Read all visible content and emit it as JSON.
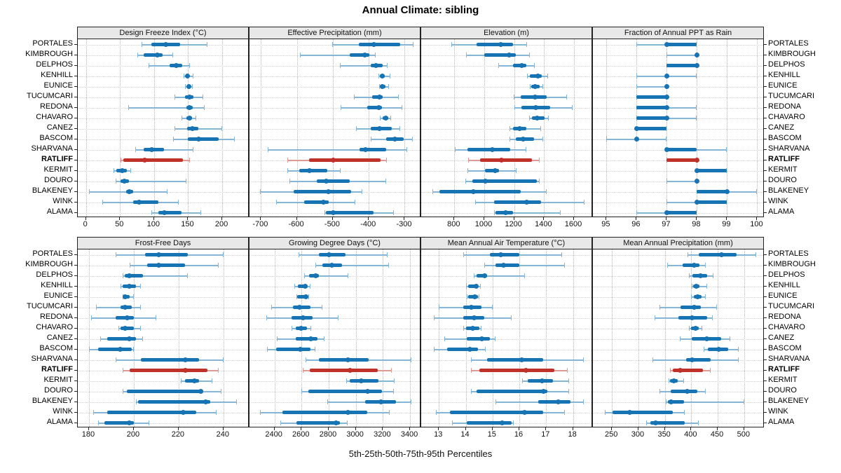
{
  "title": "Annual Climate: sibling",
  "footer": "5th-25th-50th-75th-95th Percentiles",
  "chart_data": {
    "type": "scatter",
    "subtype": "trellis-percentile-intervals",
    "title": "Annual Climate: sibling",
    "caption": "5th-25th-50th-75th-95th Percentiles",
    "legend_note": "each row shows 5th-95th whisker, 25th-75th thick bar, 50th dot",
    "grid": "dotted",
    "stations": [
      "PORTALES",
      "KIMBROUGH",
      "DELPHOS",
      "KENHILL",
      "EUNICE",
      "TUCUMCARI",
      "REDONA",
      "CHAVARO",
      "CANEZ",
      "BASCOM",
      "SHARVANA",
      "RATLIFF",
      "KERMIT",
      "DOURO",
      "BLAKENEY",
      "WINK",
      "ALAMA"
    ],
    "highlight_station": "RATLIFF",
    "colors": {
      "series": "#1673b4",
      "series_light": "#85b6d8",
      "highlight": "#c0312a",
      "highlight_light": "#de9a94",
      "strip_bg": "#e8e8e8",
      "border": "#222222"
    },
    "panels": [
      {
        "label": "Design Freeze Index (°C)",
        "domain": [
          -12,
          238
        ],
        "ticks": [
          0,
          50,
          100,
          150,
          200
        ],
        "values": [
          [
            82,
            96,
            117,
            138,
            178
          ],
          [
            75,
            85,
            105,
            113,
            128
          ],
          [
            92,
            123,
            133,
            141,
            153
          ],
          [
            143,
            146,
            149,
            152,
            158
          ],
          [
            145,
            148,
            151,
            153,
            157
          ],
          [
            130,
            145,
            152,
            158,
            172
          ],
          [
            62,
            147,
            152,
            157,
            174
          ],
          [
            140,
            147,
            152,
            156,
            162
          ],
          [
            130,
            148,
            156,
            165,
            200
          ],
          [
            128,
            150,
            165,
            195,
            218
          ],
          [
            72,
            85,
            97,
            115,
            158
          ],
          [
            51,
            55,
            86,
            142,
            153
          ],
          [
            40,
            45,
            53,
            60,
            66
          ],
          [
            44,
            51,
            56,
            63,
            147
          ],
          [
            4,
            59,
            64,
            69,
            120
          ],
          [
            24,
            69,
            78,
            106,
            136
          ],
          [
            96,
            106,
            115,
            140,
            169
          ]
        ]
      },
      {
        "label": "Effective Precipitation (mm)",
        "domain": [
          -732,
          -258
        ],
        "ticks": [
          -700,
          -600,
          -500,
          -400,
          -300
        ],
        "values": [
          [
            -501,
            -427,
            -386,
            -312,
            -276
          ],
          [
            -591,
            -453,
            -412,
            -399,
            -381
          ],
          [
            -481,
            -394,
            -379,
            -361,
            -348
          ],
          [
            -373,
            -370,
            -362,
            -355,
            -340
          ],
          [
            -372,
            -369,
            -363,
            -354,
            -343
          ],
          [
            -441,
            -391,
            -370,
            -361,
            -316
          ],
          [
            -478,
            -404,
            -373,
            -364,
            -307
          ],
          [
            -369,
            -362,
            -353,
            -345,
            -338
          ],
          [
            -435,
            -394,
            -371,
            -336,
            -312
          ],
          [
            -395,
            -351,
            -327,
            -302,
            -278
          ],
          [
            -682,
            -426,
            -409,
            -351,
            -293
          ],
          [
            -626,
            -566,
            -498,
            -368,
            -350
          ],
          [
            -626,
            -593,
            -566,
            -516,
            -478
          ],
          [
            -621,
            -545,
            -519,
            -453,
            -351
          ],
          [
            -703,
            -610,
            -512,
            -450,
            -418
          ],
          [
            -657,
            -580,
            -527,
            -512,
            -437
          ],
          [
            -524,
            -519,
            -499,
            -387,
            -330
          ]
        ]
      },
      {
        "label": "Elevation (m)",
        "domain": [
          578,
          1717
        ],
        "ticks": [
          800,
          1000,
          1200,
          1400,
          1600
        ],
        "values": [
          [
            780,
            950,
            1108,
            1190,
            1288
          ],
          [
            877,
            998,
            1167,
            1209,
            1303
          ],
          [
            1095,
            1194,
            1251,
            1280,
            1337
          ],
          [
            1284,
            1303,
            1358,
            1384,
            1428
          ],
          [
            1306,
            1316,
            1342,
            1369,
            1394
          ],
          [
            1198,
            1244,
            1342,
            1417,
            1553
          ],
          [
            1202,
            1248,
            1345,
            1440,
            1589
          ],
          [
            1300,
            1319,
            1353,
            1405,
            1433
          ],
          [
            1170,
            1194,
            1238,
            1280,
            1378
          ],
          [
            1170,
            1210,
            1260,
            1334,
            1392
          ],
          [
            803,
            889,
            1056,
            1175,
            1280
          ],
          [
            892,
            970,
            1116,
            1319,
            1370
          ],
          [
            889,
            1006,
            1072,
            1100,
            1217
          ],
          [
            875,
            920,
            1005,
            1350,
            1370
          ],
          [
            655,
            698,
            925,
            1244,
            1417
          ],
          [
            939,
            1064,
            1283,
            1381,
            1670
          ],
          [
            1065,
            1075,
            1144,
            1194,
            1510
          ]
        ]
      },
      {
        "label": "Fraction of Annual PPT as Rain",
        "domain": [
          94.55,
          100.2
        ],
        "ticks": [
          95,
          96,
          97,
          98,
          99,
          100
        ],
        "values": [
          [
            96,
            97,
            97,
            98,
            98
          ],
          [
            97,
            98,
            98,
            98,
            98
          ],
          [
            97,
            97,
            98,
            98,
            98
          ],
          [
            96,
            97,
            97,
            97,
            98
          ],
          [
            96,
            97,
            97,
            97,
            97
          ],
          [
            96,
            96,
            97,
            97,
            97
          ],
          [
            96,
            96,
            97,
            97,
            98
          ],
          [
            96,
            96,
            97,
            97,
            98
          ],
          [
            96,
            96,
            96,
            97,
            97
          ],
          [
            95,
            96,
            96,
            96,
            97
          ],
          [
            97,
            97,
            97,
            98,
            99
          ],
          [
            97,
            97,
            98,
            98,
            98
          ],
          [
            98,
            98,
            98,
            99,
            99
          ],
          [
            97,
            98,
            98,
            98,
            98
          ],
          [
            98,
            98,
            99,
            99,
            100
          ],
          [
            97,
            98,
            98,
            99,
            99
          ],
          [
            96,
            97,
            97,
            98,
            98
          ]
        ]
      },
      {
        "label": "Frost-Free Days",
        "domain": [
          175,
          251
        ],
        "ticks": [
          180,
          200,
          220,
          240
        ],
        "values": [
          [
            192,
            205,
            211,
            224,
            240
          ],
          [
            198,
            206,
            211,
            223,
            238
          ],
          [
            195,
            196,
            198,
            204,
            224
          ],
          [
            194,
            195,
            198,
            201,
            203
          ],
          [
            195,
            195,
            196,
            198,
            200
          ],
          [
            183,
            194,
            196,
            199,
            203
          ],
          [
            181,
            192,
            197,
            200,
            210
          ],
          [
            193,
            194,
            196,
            200,
            203
          ],
          [
            185,
            188,
            198,
            201,
            204
          ],
          [
            180,
            184,
            194,
            199,
            200
          ],
          [
            192,
            203,
            223,
            229,
            240
          ],
          [
            195,
            198,
            223,
            233,
            238
          ],
          [
            221,
            223,
            227,
            229,
            235
          ],
          [
            195,
            197,
            230,
            231,
            239
          ],
          [
            201,
            202,
            232,
            234,
            246
          ],
          [
            182,
            188,
            222,
            228,
            237
          ],
          [
            184,
            187,
            198,
            200,
            207
          ]
        ]
      },
      {
        "label": "Growing Degree Days (°C)",
        "domain": [
          2216,
          3472
        ],
        "ticks": [
          2400,
          2600,
          2800,
          3000,
          3200,
          3400
        ],
        "values": [
          [
            2580,
            2730,
            2803,
            2924,
            3236
          ],
          [
            2704,
            2752,
            2821,
            2896,
            3245
          ],
          [
            2621,
            2656,
            2704,
            2730,
            2944
          ],
          [
            2549,
            2575,
            2627,
            2644,
            2666
          ],
          [
            2563,
            2570,
            2630,
            2650,
            2656
          ],
          [
            2374,
            2536,
            2587,
            2666,
            2752
          ],
          [
            2340,
            2524,
            2609,
            2683,
            2872
          ],
          [
            2524,
            2558,
            2597,
            2639,
            2673
          ],
          [
            2415,
            2558,
            2666,
            2718,
            2769
          ],
          [
            2345,
            2410,
            2590,
            2665,
            2700
          ],
          [
            2627,
            2726,
            2941,
            3095,
            3411
          ],
          [
            2610,
            2660,
            2958,
            3164,
            3267
          ],
          [
            2927,
            2953,
            3042,
            3167,
            3288
          ],
          [
            2597,
            2652,
            3085,
            3193,
            3279
          ],
          [
            2790,
            3068,
            3184,
            3296,
            3408
          ],
          [
            2292,
            2460,
            2941,
            3085,
            3250
          ],
          [
            2446,
            2561,
            2855,
            2884,
            2941
          ]
        ]
      },
      {
        "label": "Mean Annual Air Temperature (°C)",
        "domain": [
          12.34,
          18.69
        ],
        "ticks": [
          13,
          14,
          15,
          16,
          17,
          18
        ],
        "values": [
          [
            13.9,
            14.9,
            15.3,
            16.0,
            17.6
          ],
          [
            14.7,
            15.1,
            15.4,
            16.0,
            17.7
          ],
          [
            14.3,
            14.4,
            14.7,
            14.8,
            16.2
          ],
          [
            14.0,
            14.1,
            14.4,
            14.45,
            14.55
          ],
          [
            14.05,
            14.1,
            14.35,
            14.45,
            14.5
          ],
          [
            13.0,
            13.9,
            14.2,
            14.6,
            15.0
          ],
          [
            12.8,
            13.9,
            14.3,
            14.7,
            15.7
          ],
          [
            13.9,
            14.0,
            14.25,
            14.5,
            14.6
          ],
          [
            13.2,
            14.05,
            14.6,
            14.9,
            15.1
          ],
          [
            12.8,
            13.3,
            14.15,
            14.45,
            14.75
          ],
          [
            14.2,
            14.8,
            16.1,
            16.9,
            18.4
          ],
          [
            14.2,
            14.5,
            16.25,
            17.3,
            17.8
          ],
          [
            16.1,
            16.3,
            16.85,
            17.25,
            17.85
          ],
          [
            14.2,
            14.4,
            16.9,
            17.05,
            17.85
          ],
          [
            15.1,
            16.7,
            17.45,
            17.9,
            18.4
          ],
          [
            12.9,
            13.4,
            16.2,
            16.9,
            17.7
          ],
          [
            13.5,
            14.05,
            15.35,
            15.7,
            15.8
          ]
        ]
      },
      {
        "label": "Mean Annual Precipitation (mm)",
        "domain": [
          214,
          536
        ],
        "ticks": [
          250,
          300,
          350,
          400,
          450,
          500
        ],
        "values": [
          [
            393,
            414,
            457,
            485,
            523
          ],
          [
            354,
            384,
            405,
            415,
            427
          ],
          [
            395,
            402,
            418,
            430,
            442
          ],
          [
            401,
            403,
            409,
            415,
            430
          ],
          [
            400,
            405,
            412,
            420,
            427
          ],
          [
            340,
            379,
            405,
            418,
            449
          ],
          [
            330,
            376,
            402,
            430,
            441
          ],
          [
            396,
            399,
            408,
            414,
            421
          ],
          [
            378,
            401,
            429,
            457,
            474
          ],
          [
            424,
            431,
            452,
            470,
            490
          ],
          [
            327,
            390,
            402,
            437,
            489
          ],
          [
            360,
            365,
            379,
            422,
            437
          ],
          [
            357,
            360,
            367,
            374,
            386
          ],
          [
            340,
            361,
            392,
            411,
            428
          ],
          [
            352,
            356,
            362,
            386,
            500
          ],
          [
            237,
            251,
            284,
            365,
            388
          ],
          [
            315,
            322,
            333,
            388,
            414
          ]
        ]
      }
    ]
  }
}
